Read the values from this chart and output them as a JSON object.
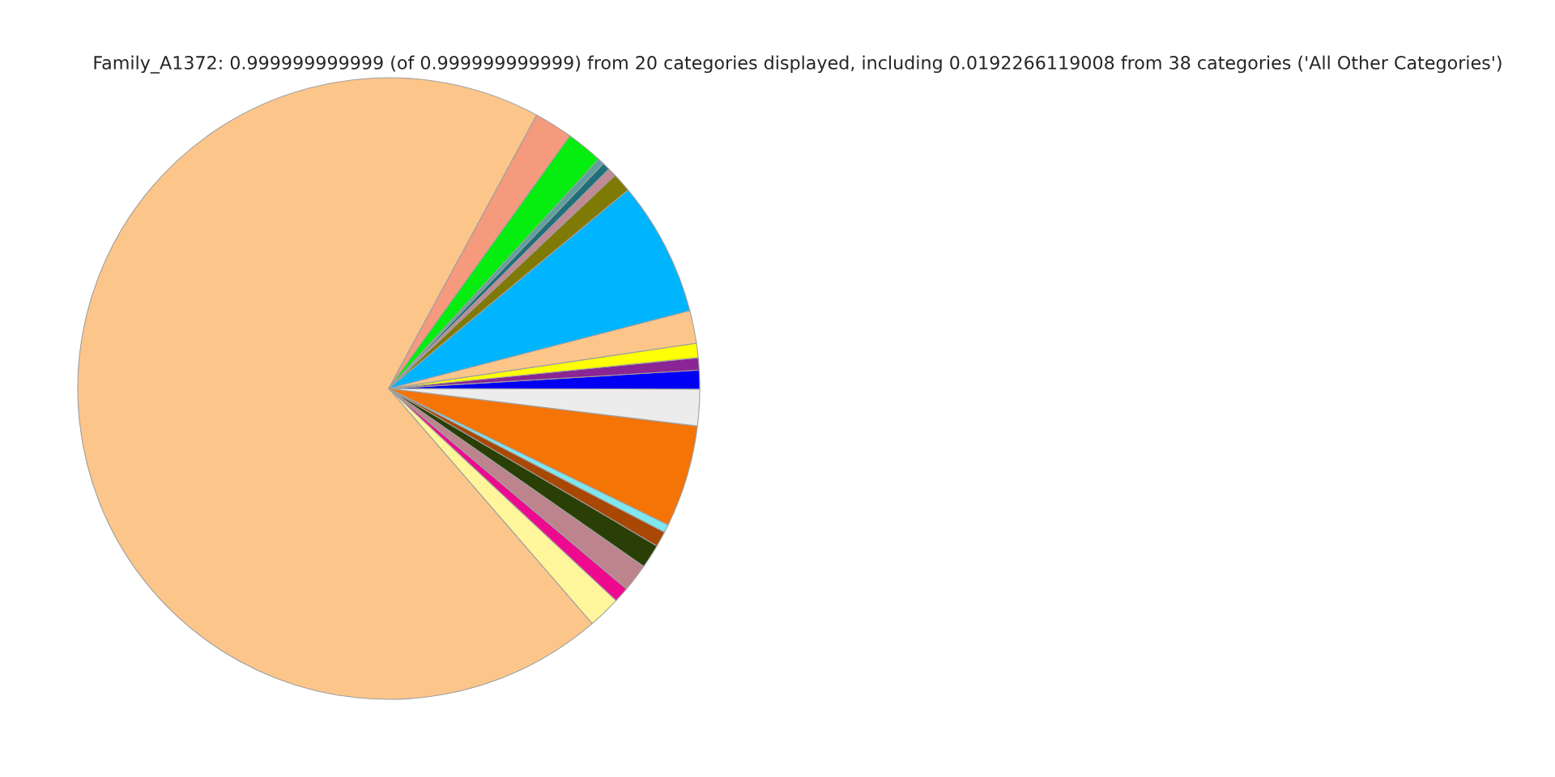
{
  "chart_data": {
    "type": "pie",
    "title": "Family_A1372: 0.999999999999 (of 0.999999999999) from 20 categories displayed, including 0.0192266119008 from 38 categories ('All Other Categories')",
    "categories": [
      null,
      null,
      null,
      null,
      null,
      null,
      null,
      null,
      null,
      null,
      null,
      null,
      null,
      null,
      null,
      null,
      null,
      null,
      null,
      null
    ],
    "values": [
      69.24,
      1.7,
      0.8,
      1.45,
      1.25,
      0.8,
      0.42,
      5.3,
      1.9,
      0.97,
      0.64,
      0.75,
      1.7,
      7.0,
      1.0,
      0.45,
      0.4,
      0.33,
      1.9,
      2.0
    ],
    "colors": [
      "#fcc68a",
      "#fff59a",
      "#ee0a8f",
      "#bd848d",
      "#2a3f05",
      "#a94705",
      "#7fe7f0",
      "#f47405",
      "#ececec",
      "#0000f5",
      "#8a2595",
      "#ffff05",
      "#fcc68a",
      "#00b4fd",
      "#7f7a05",
      "#c18a95",
      "#1f6f7a",
      "#5f9f9f",
      "#05ee10",
      "#f59a7d"
    ],
    "legend": false
  }
}
